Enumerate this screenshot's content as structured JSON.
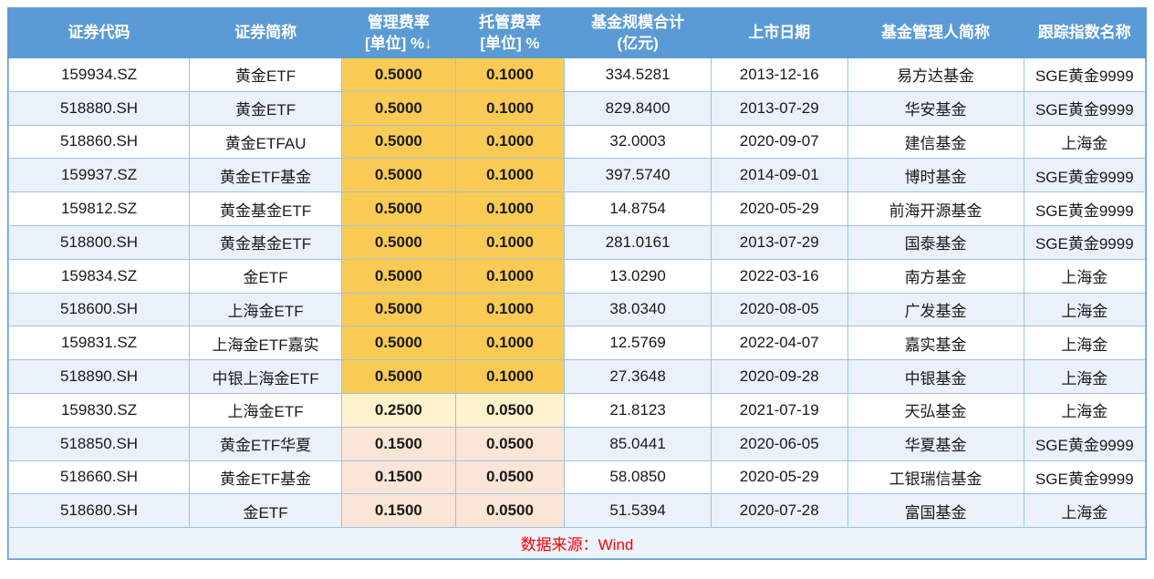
{
  "chart_data": {
    "type": "table",
    "columns": [
      "证券代码",
      "证券简称",
      "管理费率\n[单位] %↓",
      "托管费率\n[单位] %",
      "基金规模合计\n(亿元)",
      "上市日期",
      "基金管理人简称",
      "跟踪指数名称"
    ],
    "rows": [
      [
        "159934.SZ",
        "黄金ETF",
        "0.5000",
        "0.1000",
        "334.5281",
        "2013-12-16",
        "易方达基金",
        "SGE黄金9999"
      ],
      [
        "518880.SH",
        "黄金ETF",
        "0.5000",
        "0.1000",
        "829.8400",
        "2013-07-29",
        "华安基金",
        "SGE黄金9999"
      ],
      [
        "518860.SH",
        "黄金ETFAU",
        "0.5000",
        "0.1000",
        "32.0003",
        "2020-09-07",
        "建信基金",
        "上海金"
      ],
      [
        "159937.SZ",
        "黄金ETF基金",
        "0.5000",
        "0.1000",
        "397.5740",
        "2014-09-01",
        "博时基金",
        "SGE黄金9999"
      ],
      [
        "159812.SZ",
        "黄金基金ETF",
        "0.5000",
        "0.1000",
        "14.8754",
        "2020-05-29",
        "前海开源基金",
        "SGE黄金9999"
      ],
      [
        "518800.SH",
        "黄金基金ETF",
        "0.5000",
        "0.1000",
        "281.0161",
        "2013-07-29",
        "国泰基金",
        "SGE黄金9999"
      ],
      [
        "159834.SZ",
        "金ETF",
        "0.5000",
        "0.1000",
        "13.0290",
        "2022-03-16",
        "南方基金",
        "上海金"
      ],
      [
        "518600.SH",
        "上海金ETF",
        "0.5000",
        "0.1000",
        "38.0340",
        "2020-08-05",
        "广发基金",
        "上海金"
      ],
      [
        "159831.SZ",
        "上海金ETF嘉实",
        "0.5000",
        "0.1000",
        "12.5769",
        "2022-04-07",
        "嘉实基金",
        "上海金"
      ],
      [
        "518890.SH",
        "中银上海金ETF",
        "0.5000",
        "0.1000",
        "27.3648",
        "2020-09-28",
        "中银基金",
        "上海金"
      ],
      [
        "159830.SZ",
        "上海金ETF",
        "0.2500",
        "0.0500",
        "21.8123",
        "2021-07-19",
        "天弘基金",
        "上海金"
      ],
      [
        "518850.SH",
        "黄金ETF华夏",
        "0.1500",
        "0.0500",
        "85.0441",
        "2020-06-05",
        "华夏基金",
        "SGE黄金9999"
      ],
      [
        "518660.SH",
        "黄金ETF基金",
        "0.1500",
        "0.0500",
        "58.0850",
        "2020-05-29",
        "工银瑞信基金",
        "SGE黄金9999"
      ],
      [
        "518680.SH",
        "金ETF",
        "0.1500",
        "0.0500",
        "51.5394",
        "2020-07-28",
        "富国基金",
        "上海金"
      ]
    ],
    "fee_tiers": [
      "high",
      "high",
      "high",
      "high",
      "high",
      "high",
      "high",
      "high",
      "high",
      "high",
      "mid",
      "low",
      "low",
      "low"
    ],
    "sort_indicator": "↓",
    "source_note": "数据来源：Wind",
    "layout": {
      "grid": true,
      "zebra_striping": true,
      "legend_position": "none"
    }
  },
  "colors": {
    "header_bg": "#5b9bd5",
    "grid_line": "#9dc3e6",
    "alt_row_bg": "#eaf1fa",
    "fee_tier_high_bg": "#f9cb55",
    "fee_tier_mid_bg": "#fdf2cc",
    "fee_tier_low_bg": "#fbe5d6",
    "footer_bg": "#edf3fb",
    "source_text": "#ff0000"
  }
}
